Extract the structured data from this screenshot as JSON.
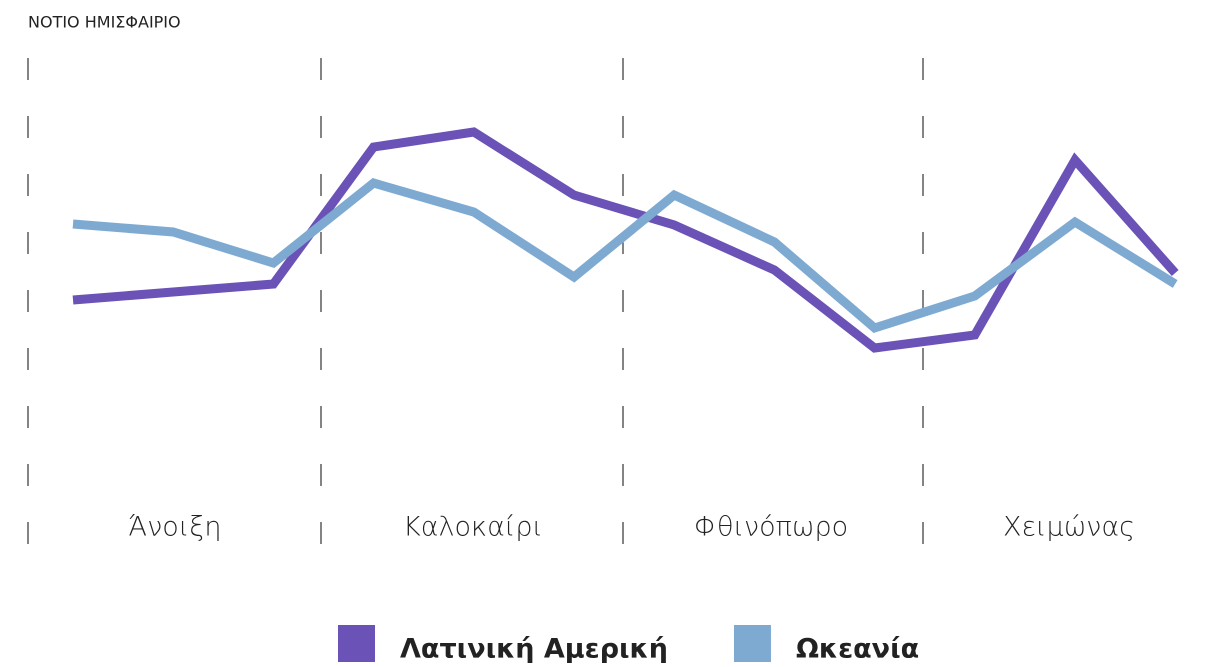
{
  "chart_data": {
    "type": "line",
    "title": "ΝΟΤΙΟ ΗΜΙΣΦΑΙΡΙΟ",
    "categories": [
      null,
      null,
      null,
      null,
      null,
      null,
      null,
      null,
      null,
      null,
      null,
      null
    ],
    "groups": [
      "Άνοιξη",
      "Καλοκαίρι",
      "Φθινόπωρο",
      "Χειμώνας"
    ],
    "ylim": [
      0,
      100
    ],
    "legend": "bottom",
    "series": [
      {
        "name": "Λατινική Αμερική",
        "color": "#6a52b6",
        "values": [
          52,
          53.6,
          55.2,
          82.6,
          85.6,
          73,
          67,
          58,
          42.4,
          45,
          80,
          57.4
        ]
      },
      {
        "name": "Ωκεανία",
        "color": "#7eaad2",
        "values": [
          67.2,
          65.6,
          59.4,
          75.4,
          69.6,
          56.6,
          73,
          63.6,
          46.4,
          52.8,
          67.6,
          55.2
        ]
      }
    ]
  }
}
